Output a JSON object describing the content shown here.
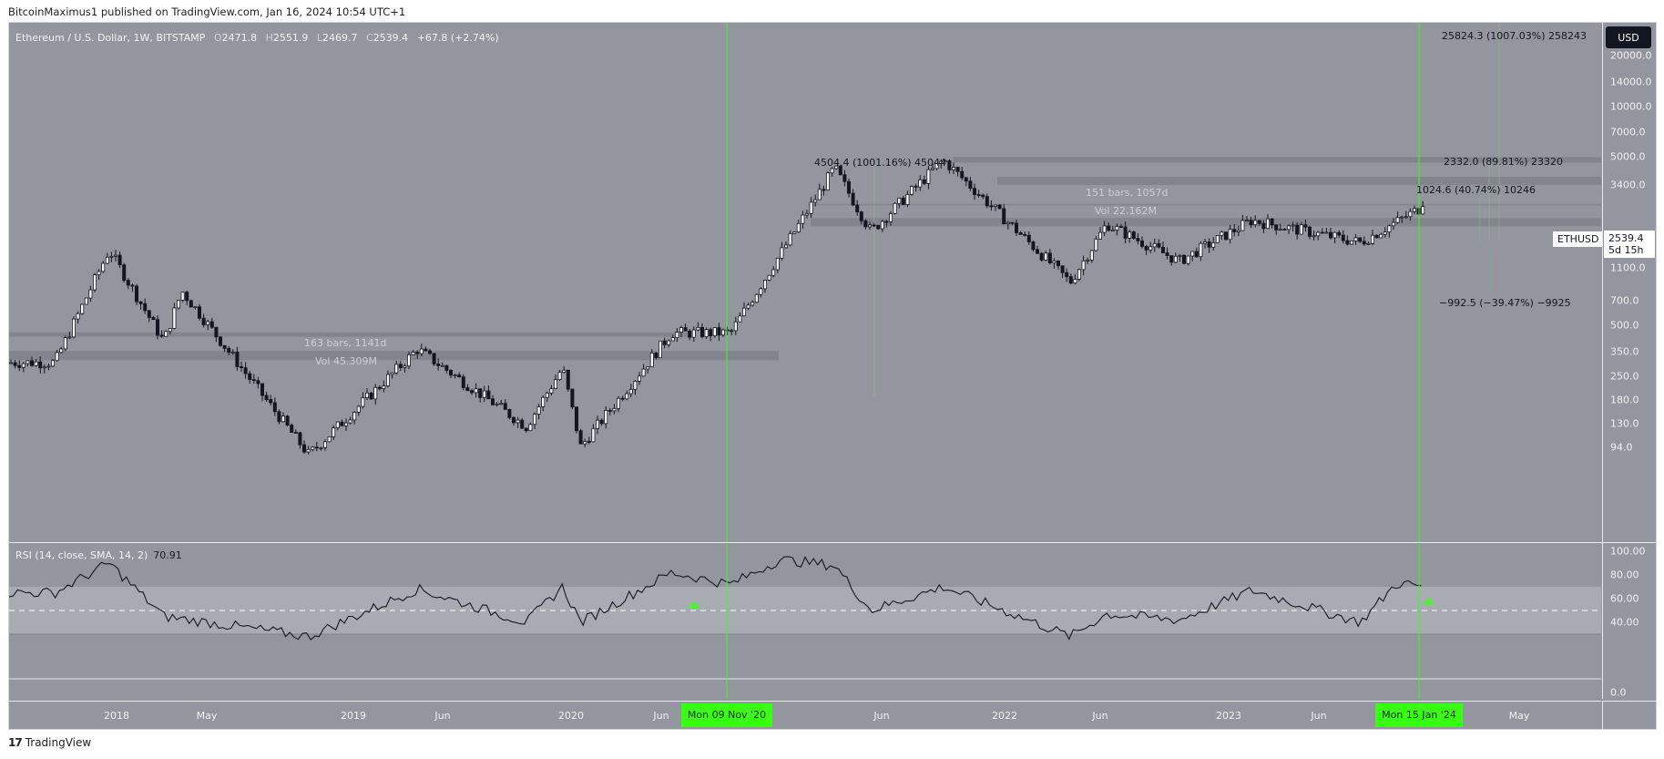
{
  "header": {
    "publisher_line": "BitcoinMaximus1 published on TradingView.com, Jan 16, 2024 10:54 UTC+1"
  },
  "legend": {
    "symbol": "Ethereum / U.S. Dollar, 1W, BITSTAMP",
    "open_label": "O",
    "open": "2471.8",
    "high_label": "H",
    "high": "2551.9",
    "low_label": "L",
    "low": "2469.7",
    "close_label": "C",
    "close": "2539.4",
    "change": "+67.8 (+2.74%)"
  },
  "rsi": {
    "label": "RSI (14, close, SMA, 14, 2)",
    "value": "70.91",
    "axis_ticks": [
      "100.00",
      "80.00",
      "60.00",
      "40.00"
    ],
    "zero_label": "0.0"
  },
  "price_axis": {
    "currency_button": "USD",
    "ticks": [
      "20000.0",
      "14000.0",
      "10000.0",
      "7000.0",
      "5000.0",
      "3400.0",
      "1600.0",
      "1100.0",
      "700.0",
      "500.0",
      "350.0",
      "250.0",
      "180.0",
      "130.0",
      "94.0"
    ],
    "last_price": "2539.4",
    "countdown": "5d 15h",
    "symbol_tag": "ETHUSD"
  },
  "time_axis": {
    "labels": [
      "2018",
      "May",
      "2019",
      "Jun",
      "2020",
      "Jun",
      "Mon 09 Nov '20",
      "Jun",
      "2022",
      "Jun",
      "2023",
      "Jun",
      "Mon 15 Jan '24",
      "May"
    ]
  },
  "annotations": {
    "range1_bars": "163 bars, 1141d",
    "range1_vol": "Vol 45.309M",
    "range2_bars": "151 bars, 1057d",
    "range2_vol": "Vol 22.162M",
    "measure1": "4504.4 (1001.16%) 45044",
    "measure2": "25824.3 (1007.03%) 258243",
    "measure3": "2332.0 (89.81%) 23320",
    "measure4": "1024.6 (40.74%) 10246",
    "measure5": "−992.5 (−39.47%) −9925"
  },
  "footer": {
    "brand": "TradingView",
    "logo_mark": "17"
  },
  "colors": {
    "background": "#93959f",
    "bull_body": "#ffffff",
    "bear_body": "#131722",
    "highlight_green": "#39ff14",
    "rsi_band": "#a9abb3",
    "zone_gray": "#7f818b"
  },
  "chart_data": [
    {
      "type": "candlestick",
      "title": "Ethereum / U.S. Dollar, 1W, BITSTAMP",
      "yscale": "log",
      "ylim": [
        80,
        30000
      ],
      "xlabel": "",
      "ylabel": "USD",
      "x_ticks": [
        "2018",
        "May",
        "2019",
        "Jun",
        "2020",
        "Jun",
        "Mon 09 Nov '20",
        "Jun",
        "2022",
        "Jun",
        "2023",
        "Jun",
        "Mon 15 Jan '24",
        "May"
      ],
      "y_ticks": [
        20000,
        14000,
        10000,
        7000,
        5000,
        3400,
        1600,
        1100,
        700,
        500,
        350,
        250,
        180,
        130,
        94
      ],
      "key_points": [
        {
          "date": "2017-10",
          "price": 300
        },
        {
          "date": "2018-01",
          "price": 1400
        },
        {
          "date": "2018-04",
          "price": 400
        },
        {
          "date": "2018-05",
          "price": 800
        },
        {
          "date": "2018-12",
          "price": 85
        },
        {
          "date": "2019-06",
          "price": 360
        },
        {
          "date": "2019-12",
          "price": 125
        },
        {
          "date": "2020-02",
          "price": 280
        },
        {
          "date": "2020-03",
          "price": 95
        },
        {
          "date": "2020-08",
          "price": 450
        },
        {
          "date": "2020-11-09",
          "price": 450
        },
        {
          "date": "2021-05",
          "price": 4300
        },
        {
          "date": "2021-07",
          "price": 1800
        },
        {
          "date": "2021-11",
          "price": 4800
        },
        {
          "date": "2022-06",
          "price": 900
        },
        {
          "date": "2022-08",
          "price": 2000
        },
        {
          "date": "2022-12",
          "price": 1200
        },
        {
          "date": "2023-04",
          "price": 2100
        },
        {
          "date": "2023-10",
          "price": 1550
        },
        {
          "date": "2024-01-15",
          "price": 2539.4
        }
      ],
      "last": {
        "open": 2471.8,
        "high": 2551.9,
        "low": 2469.7,
        "close": 2539.4,
        "change": 67.8,
        "change_pct": 2.74
      },
      "horizontal_zones": [
        {
          "price": 440,
          "style": "thin"
        },
        {
          "price": 330,
          "style": "thick"
        },
        {
          "price": 4800,
          "style": "thin"
        },
        {
          "price": 3600,
          "style": "thin"
        },
        {
          "price": 2600,
          "style": "line"
        },
        {
          "price": 2050,
          "style": "thick"
        }
      ],
      "vertical_markers": [
        "Mon 09 Nov '20",
        "Mon 15 Jan '24"
      ],
      "annotations": [
        "163 bars, 1141d",
        "Vol 45.309M",
        "151 bars, 1057d",
        "Vol 22.162M",
        "4504.4 (1001.16%) 45044",
        "25824.3 (1007.03%) 258243",
        "2332.0 (89.81%) 23320",
        "1024.6 (40.74%) 10246",
        "-992.5 (-39.47%) -9925"
      ]
    },
    {
      "type": "line",
      "title": "RSI (14, close, SMA, 14, 2)",
      "ylim": [
        0,
        100
      ],
      "y_ticks": [
        100,
        80,
        60,
        40
      ],
      "bands": {
        "upper": 70,
        "middle": 50,
        "lower": 30
      },
      "current": 70.91,
      "key_points": [
        {
          "date": "2017-10",
          "value": 65
        },
        {
          "date": "2018-01",
          "value": 90
        },
        {
          "date": "2018-04",
          "value": 45
        },
        {
          "date": "2018-12",
          "value": 28
        },
        {
          "date": "2019-06",
          "value": 68
        },
        {
          "date": "2019-12",
          "value": 40
        },
        {
          "date": "2020-02",
          "value": 70
        },
        {
          "date": "2020-03",
          "value": 40
        },
        {
          "date": "2020-08",
          "value": 82
        },
        {
          "date": "2020-11-09",
          "value": 72
        },
        {
          "date": "2021-02",
          "value": 93
        },
        {
          "date": "2021-05",
          "value": 88
        },
        {
          "date": "2021-07",
          "value": 50
        },
        {
          "date": "2021-11",
          "value": 70
        },
        {
          "date": "2022-06",
          "value": 28
        },
        {
          "date": "2022-08",
          "value": 47
        },
        {
          "date": "2022-12",
          "value": 42
        },
        {
          "date": "2023-04",
          "value": 67
        },
        {
          "date": "2023-10",
          "value": 40
        },
        {
          "date": "2023-12",
          "value": 73
        },
        {
          "date": "2024-01-15",
          "value": 70.91
        }
      ]
    }
  ]
}
